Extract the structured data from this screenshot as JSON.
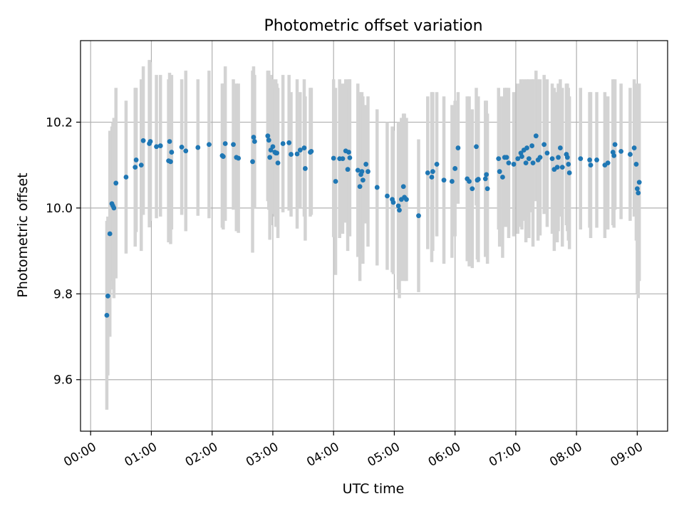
{
  "colors": {
    "point": "#1f77b4",
    "errorbar": "#d3d3d3",
    "grid": "#b0b0b0",
    "axis": "#000000",
    "background": "#ffffff"
  },
  "chart_data": {
    "type": "scatter",
    "title": "Photometric offset variation",
    "xlabel": "UTC time",
    "ylabel": "Photometric offset",
    "x_unit": "minutes after 00:00",
    "xlim": [
      -10,
      570
    ],
    "ylim": [
      9.48,
      10.39
    ],
    "xticks": [
      0,
      60,
      120,
      180,
      240,
      300,
      360,
      420,
      480,
      540
    ],
    "xtick_labels": [
      "00:00",
      "01:00",
      "02:00",
      "03:00",
      "04:00",
      "05:00",
      "06:00",
      "07:00",
      "08:00",
      "09:00"
    ],
    "yticks": [
      9.6,
      9.8,
      10.0,
      10.2
    ],
    "ytick_labels": [
      "9.6",
      "9.8",
      "10.0",
      "10.2"
    ],
    "grid": true,
    "legend": false,
    "series": [
      {
        "marker": "point-with-errorbar",
        "points": [
          [
            16,
            9.75,
            9.97
          ],
          [
            17,
            9.795,
            9.98
          ],
          [
            19,
            9.94,
            10.18
          ],
          [
            21,
            10.01,
            10.19
          ],
          [
            22,
            10.005,
            10.2
          ],
          [
            23,
            10.0,
            10.21
          ],
          [
            25,
            10.058,
            10.28
          ],
          [
            35,
            10.072,
            10.25
          ],
          [
            44,
            10.095,
            10.28
          ],
          [
            45,
            10.112,
            10.28
          ],
          [
            50,
            10.1,
            10.3
          ],
          [
            52,
            10.157,
            10.33
          ],
          [
            58,
            10.15,
            10.345
          ],
          [
            59,
            10.155,
            10.34
          ],
          [
            65,
            10.143,
            10.31
          ],
          [
            69,
            10.145,
            10.31
          ],
          [
            77,
            10.11,
            10.3
          ],
          [
            78,
            10.155,
            10.315
          ],
          [
            79,
            10.108,
            10.3
          ],
          [
            80,
            10.13,
            10.31
          ],
          [
            90,
            10.142,
            10.3
          ],
          [
            94,
            10.133,
            10.32
          ],
          [
            106,
            10.141,
            10.3
          ],
          [
            117,
            10.148,
            10.32
          ],
          [
            130,
            10.122,
            10.29
          ],
          [
            131,
            10.12,
            10.29
          ],
          [
            133,
            10.15,
            10.33
          ],
          [
            141,
            10.148,
            10.3
          ],
          [
            144,
            10.118,
            10.29
          ],
          [
            146,
            10.116,
            10.29
          ],
          [
            160,
            10.108,
            10.32
          ],
          [
            161,
            10.165,
            10.33
          ],
          [
            162,
            10.155,
            10.31
          ],
          [
            175,
            10.168,
            10.32
          ],
          [
            176,
            10.158,
            10.32
          ],
          [
            177,
            10.118,
            10.31
          ],
          [
            178,
            10.135,
            10.31
          ],
          [
            180,
            10.143,
            10.3
          ],
          [
            182,
            10.13,
            10.28
          ],
          [
            183,
            10.128,
            10.3
          ],
          [
            184,
            10.128,
            10.29
          ],
          [
            185,
            10.105,
            10.28
          ],
          [
            190,
            10.15,
            10.31
          ],
          [
            196,
            10.152,
            10.31
          ],
          [
            198,
            10.125,
            10.27
          ],
          [
            204,
            10.126,
            10.3
          ],
          [
            207,
            10.135,
            10.27
          ],
          [
            211,
            10.14,
            10.3
          ],
          [
            212,
            10.092,
            10.26
          ],
          [
            217,
            10.13,
            10.28
          ],
          [
            218,
            10.132,
            10.28
          ],
          [
            240,
            10.116,
            10.3
          ],
          [
            242,
            10.062,
            10.28
          ],
          [
            246,
            10.115,
            10.3
          ],
          [
            249,
            10.115,
            10.29
          ],
          [
            252,
            10.133,
            10.3
          ],
          [
            254,
            10.09,
            10.28
          ],
          [
            255,
            10.13,
            10.3
          ],
          [
            256,
            10.117,
            10.3
          ],
          [
            264,
            10.088,
            10.29
          ],
          [
            266,
            10.05,
            10.27
          ],
          [
            267,
            10.078,
            10.26
          ],
          [
            268,
            10.085,
            10.27
          ],
          [
            269,
            10.065,
            10.26
          ],
          [
            272,
            10.102,
            10.24
          ],
          [
            274,
            10.085,
            10.26
          ],
          [
            283,
            10.048,
            10.23
          ],
          [
            293,
            10.028,
            10.2
          ],
          [
            298,
            10.02,
            10.19
          ],
          [
            299,
            10.013,
            10.18
          ],
          [
            304,
            10.005,
            10.2
          ],
          [
            305,
            9.995,
            10.2
          ],
          [
            307,
            10.02,
            10.21
          ],
          [
            309,
            10.05,
            10.22
          ],
          [
            310,
            10.025,
            10.22
          ],
          [
            312,
            10.02,
            10.21
          ],
          [
            324,
            9.982,
            10.16
          ],
          [
            333,
            10.082,
            10.26
          ],
          [
            337,
            10.072,
            10.27
          ],
          [
            338,
            10.085,
            10.27
          ],
          [
            342,
            10.102,
            10.27
          ],
          [
            349,
            10.065,
            10.26
          ],
          [
            357,
            10.062,
            10.24
          ],
          [
            360,
            10.092,
            10.25
          ],
          [
            363,
            10.14,
            10.27
          ],
          [
            372,
            10.068,
            10.26
          ],
          [
            374,
            10.062,
            10.26
          ],
          [
            377,
            10.045,
            10.23
          ],
          [
            382,
            10.065,
            10.25
          ],
          [
            381,
            10.143,
            10.28
          ],
          [
            383,
            10.067,
            10.26
          ],
          [
            390,
            10.068,
            10.25
          ],
          [
            391,
            10.078,
            10.25
          ],
          [
            392,
            10.045,
            10.22
          ],
          [
            403,
            10.115,
            10.28
          ],
          [
            404,
            10.085,
            10.26
          ],
          [
            407,
            10.072,
            10.26
          ],
          [
            409,
            10.118,
            10.28
          ],
          [
            411,
            10.118,
            10.28
          ],
          [
            413,
            10.105,
            10.28
          ],
          [
            418,
            10.102,
            10.27
          ],
          [
            422,
            10.115,
            10.29
          ],
          [
            425,
            10.128,
            10.3
          ],
          [
            426,
            10.12,
            10.29
          ],
          [
            428,
            10.135,
            10.3
          ],
          [
            430,
            10.105,
            10.29
          ],
          [
            431,
            10.14,
            10.3
          ],
          [
            433,
            10.115,
            10.3
          ],
          [
            436,
            10.145,
            10.3
          ],
          [
            437,
            10.105,
            10.3
          ],
          [
            440,
            10.168,
            10.32
          ],
          [
            442,
            10.112,
            10.3
          ],
          [
            444,
            10.118,
            10.3
          ],
          [
            448,
            10.148,
            10.31
          ],
          [
            451,
            10.128,
            10.3
          ],
          [
            456,
            10.115,
            10.29
          ],
          [
            458,
            10.09,
            10.28
          ],
          [
            461,
            10.095,
            10.27
          ],
          [
            462,
            10.118,
            10.29
          ],
          [
            464,
            10.14,
            10.3
          ],
          [
            466,
            10.095,
            10.28
          ],
          [
            470,
            10.125,
            10.29
          ],
          [
            471,
            10.118,
            10.29
          ],
          [
            472,
            10.102,
            10.28
          ],
          [
            473,
            10.082,
            10.26
          ],
          [
            484,
            10.115,
            10.28
          ],
          [
            493,
            10.112,
            10.27
          ],
          [
            494,
            10.1,
            10.27
          ],
          [
            500,
            10.112,
            10.27
          ],
          [
            508,
            10.1,
            10.27
          ],
          [
            511,
            10.105,
            10.26
          ],
          [
            516,
            10.13,
            10.3
          ],
          [
            517,
            10.122,
            10.29
          ],
          [
            518,
            10.148,
            10.3
          ],
          [
            524,
            10.132,
            10.29
          ],
          [
            533,
            10.125,
            10.28
          ],
          [
            537,
            10.14,
            10.3
          ],
          [
            539,
            10.102,
            10.28
          ],
          [
            540,
            10.045,
            10.29
          ],
          [
            541,
            10.035,
            10.28
          ],
          [
            542,
            10.06,
            10.29
          ]
        ]
      }
    ]
  }
}
